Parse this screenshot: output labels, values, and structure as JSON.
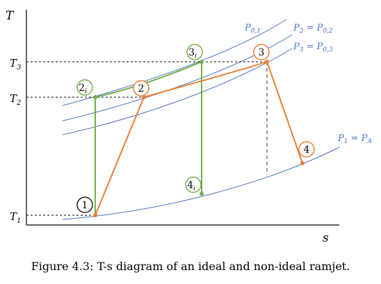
{
  "axes": {
    "y_label": "T",
    "x_label": "s"
  },
  "temperature_ticks": [
    {
      "main": "T",
      "sub": "3"
    },
    {
      "main": "T",
      "sub": "2"
    },
    {
      "main": "T",
      "sub": "1"
    }
  ],
  "isobars": [
    {
      "main": "P",
      "sub": "0,1",
      "rest": ""
    },
    {
      "main": "P",
      "sub": "2",
      "rest": " = P",
      "sub2": "0,2"
    },
    {
      "main": "P",
      "sub": "3",
      "rest": " = P",
      "sub2": "0,3"
    },
    {
      "main": "P",
      "sub": "1",
      "rest": " = P",
      "sub2": "A"
    }
  ],
  "states": [
    {
      "id": "1",
      "num": "1",
      "sub": "",
      "style": "ideal-and-real"
    },
    {
      "id": "2i",
      "num": "2",
      "sub": "i",
      "style": "ideal"
    },
    {
      "id": "3i",
      "num": "3",
      "sub": "i",
      "style": "ideal"
    },
    {
      "id": "4i",
      "num": "4",
      "sub": "i",
      "style": "ideal"
    },
    {
      "id": "2",
      "num": "2",
      "sub": "",
      "style": "real"
    },
    {
      "id": "3",
      "num": "3",
      "sub": "",
      "style": "real"
    },
    {
      "id": "4",
      "num": "4",
      "sub": "",
      "style": "real"
    }
  ],
  "colors": {
    "ideal": "#70ad47",
    "real": "#ed7d31",
    "isobar": "#4472c4",
    "point1_circle": "#000000",
    "axis": "#000000",
    "guide": "#000000"
  },
  "caption": "Figure 4.3: T-s diagram of an ideal and non-ideal ramjet."
}
